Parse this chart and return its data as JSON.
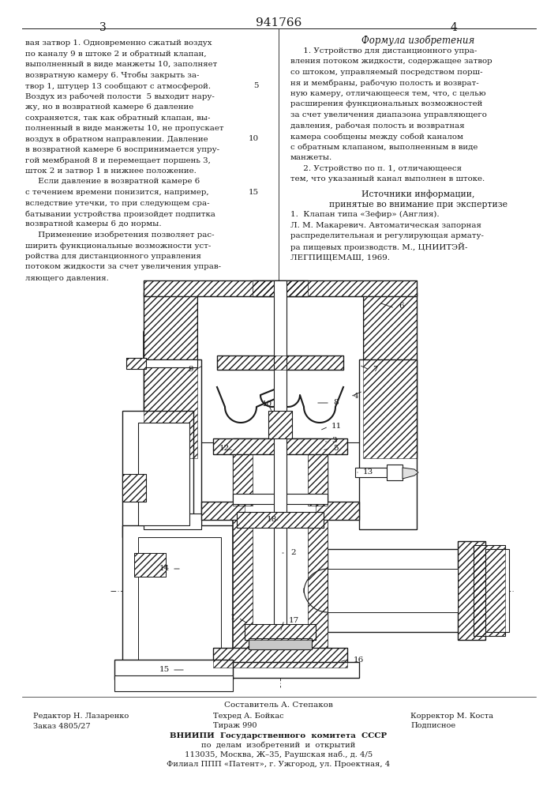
{
  "page_number_left": "3",
  "patent_number": "941766",
  "page_number_right": "4",
  "background_color": "#ffffff",
  "text_color": "#1a1a1a",
  "left_column_text": [
    "вая затвор 1. Одновременно сжатый воздух",
    "по каналу 9 в штоке 2 и обратный клапан,",
    "выполненный в виде манжеты 10, заполняет",
    "возвратную камеру 6. Чтобы закрыть за-",
    "твор 1, штуцер 13 сообщают с атмосферой.",
    "Воздух из рабочей полости  5 выходит нару-",
    "жу, но в возвратной камере 6 давление",
    "сохраняется, так как обратный клапан, вы-",
    "полненный в виде манжеты 10, не пропускает",
    "воздух в обратном направлении. Давление",
    "в возвратной камере 6 воспринимается упру-",
    "гой мембраной 8 и перемещает поршень 3,",
    "шток 2 и затвор 1 в нижнее положение.",
    "     Если давление в возвратной камере 6",
    "с течением времени понизится, например,",
    "вследствие утечки, то при следующем сра-",
    "батывании устройства произойдет подпитка",
    "возвратной камеры 6 до нормы.",
    "     Применение изобретения позволяет рас-",
    "ширить функциональные возможности уст-",
    "ройства для дистанционного управления",
    "потоком жидкости за счет увеличения управ-",
    "ляющего давления."
  ],
  "right_column_title": "Формула изобретения",
  "right_column_text": [
    "     1. Устройство для дистанционного упра-",
    "вления потоком жидкости, содержащее затвор",
    "со штоком, управляемый посредством порш-",
    "ня и мембраны, рабочую полость и возврат-",
    "ную камеру, отличающееся тем, что, с целью",
    "расширения функциональных возможностей",
    "за счет увеличения диапазона управляющего",
    "давления, рабочая полость и возвратная",
    "камера сообщены между собой каналом",
    "с обратным клапаном, выполненным в виде",
    "манжеты.",
    "     2. Устройство по п. 1, отличающееся",
    "тем, что указанный канал выполнен в штоке."
  ],
  "sources_title": "Источники информации,",
  "sources_subtitle": "принятые во внимание при экспертизе",
  "sources_text": [
    "1.  Клапан типа «Зефир» (Англия).",
    "Л. М. Макаревич. Автоматическая запорная",
    "распределительная и регулирующая армату-",
    "ра пищевых производств. М., ЦНИИТЭЙ-",
    "ЛЕГПИЩЕМАШ, 1969."
  ],
  "footer_compositor": "Составитель А. Степаков",
  "footer_editor": "Редактор Н. Лазаренко",
  "footer_techred": "Техред А. Бойкас",
  "footer_corrector": "Корректор М. Коста",
  "footer_order": "Заказ 4805/27",
  "footer_tirazh": "Тираж 990",
  "footer_podpisnoe": "Подписное",
  "footer_vnipi_line1": "ВНИИПИ  Государственного  комитета  СССР",
  "footer_vnipi_line2": "по  делам  изобретений  и  открытий",
  "footer_vnipi_line3": "113035, Москва, Ж–35, Раушская наб., д. 4/5",
  "footer_filial": "Филиал ППП «Патент», г. Ужгород, ул. Проектная, 4"
}
